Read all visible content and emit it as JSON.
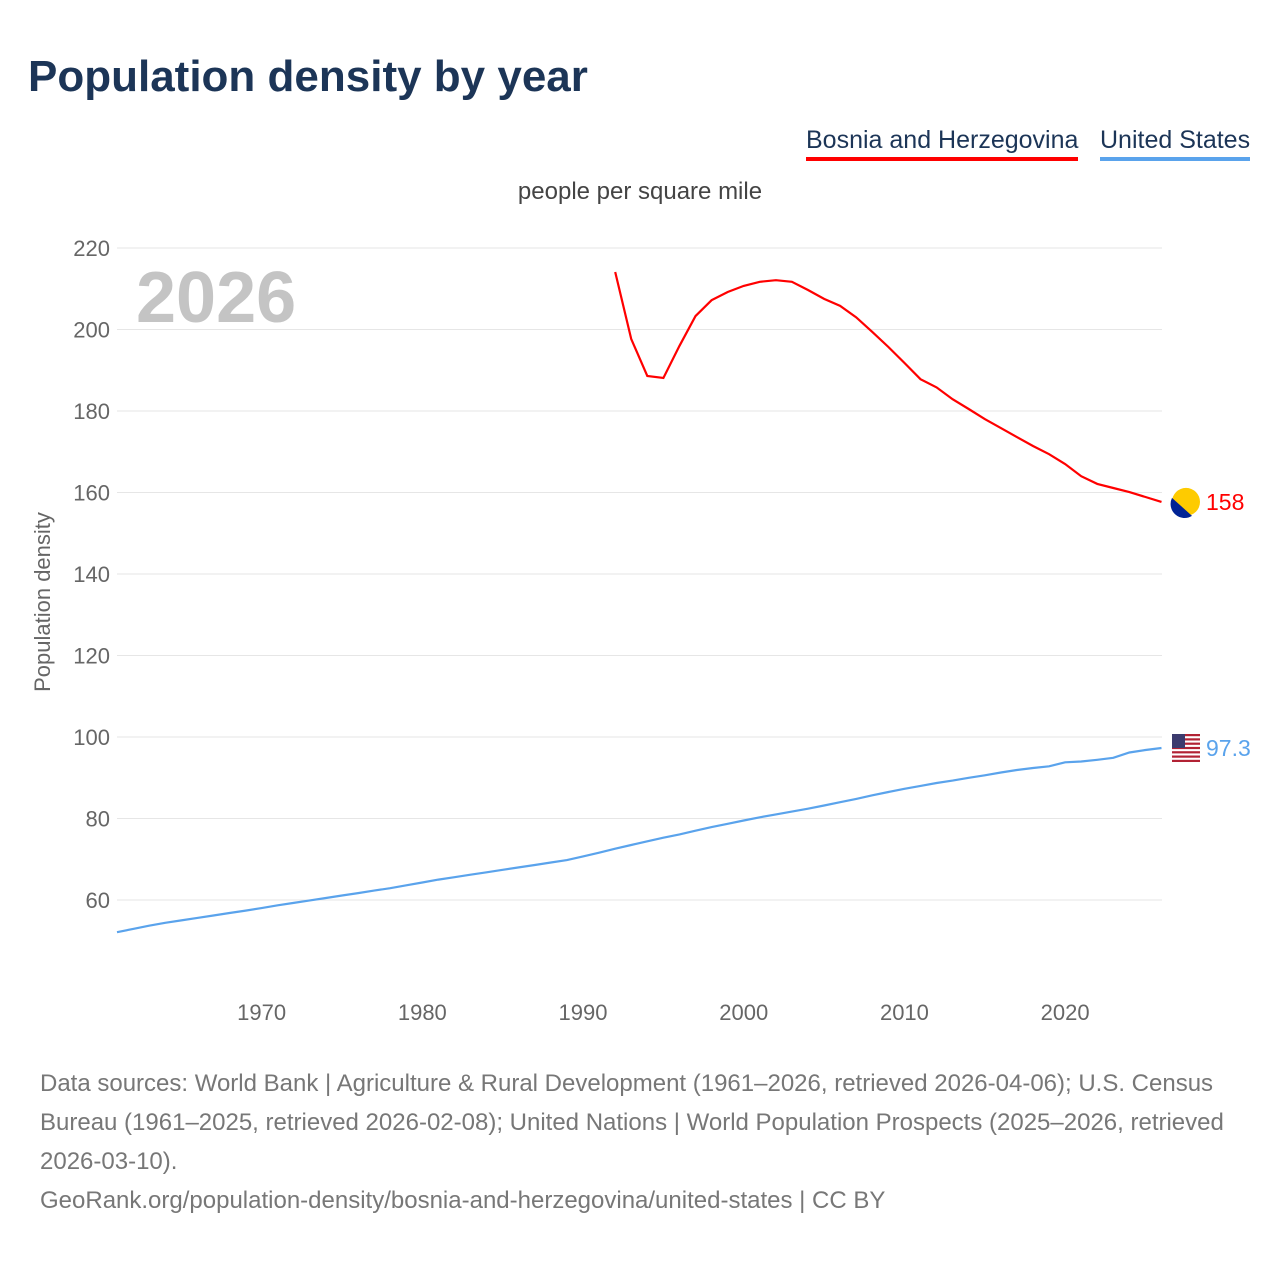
{
  "title": "Population density by year",
  "legend": [
    {
      "label": "Bosnia and Herzegovina",
      "color": "#ff0000"
    },
    {
      "label": "United States",
      "color": "#5aa3ec"
    }
  ],
  "chart_data": {
    "type": "line",
    "title": "Population density by year",
    "subtitle": "people per square mile",
    "ylabel": "Population density",
    "xlabel": "",
    "year_watermark": "2026",
    "ylim": [
      44,
      222
    ],
    "xlim": [
      1961,
      2026
    ],
    "yticks": [
      60,
      80,
      100,
      120,
      140,
      160,
      180,
      200,
      220
    ],
    "xticks": [
      1970,
      1980,
      1990,
      2000,
      2010,
      2020
    ],
    "grid": true,
    "series": [
      {
        "name": "Bosnia and Herzegovina",
        "color": "#ff0000",
        "end_label": "158",
        "start_year": 1992,
        "values": [
          214.1,
          197.7,
          188.6,
          188.1,
          196.0,
          203.3,
          207.2,
          209.2,
          210.7,
          211.7,
          212.1,
          211.7,
          209.7,
          207.5,
          205.8,
          203.0,
          199.4,
          195.7,
          191.8,
          187.8,
          185.8,
          182.9,
          180.5,
          178.0,
          175.8,
          173.6,
          171.4,
          169.4,
          167.0,
          164.0,
          162.1,
          161.1,
          160.1,
          158.9,
          157.7
        ]
      },
      {
        "name": "United States",
        "color": "#5aa3ec",
        "end_label": "97.3",
        "start_year": 1961,
        "values": [
          52.1,
          52.9,
          53.7,
          54.4,
          55.0,
          55.6,
          56.2,
          56.8,
          57.4,
          58.0,
          58.7,
          59.3,
          59.9,
          60.5,
          61.1,
          61.7,
          62.3,
          62.9,
          63.6,
          64.3,
          65.0,
          65.6,
          66.2,
          66.8,
          67.4,
          68.0,
          68.6,
          69.2,
          69.8,
          70.7,
          71.6,
          72.6,
          73.5,
          74.4,
          75.3,
          76.1,
          77.0,
          77.9,
          78.7,
          79.5,
          80.3,
          81.0,
          81.7,
          82.4,
          83.2,
          84.0,
          84.8,
          85.7,
          86.5,
          87.3,
          88.0,
          88.7,
          89.3,
          90.0,
          90.6,
          91.3,
          91.9,
          92.4,
          92.8,
          93.8,
          94.0,
          94.4,
          94.9,
          96.2,
          96.8,
          97.3
        ]
      }
    ]
  },
  "footer": {
    "sources": "Data sources: World Bank | Agriculture & Rural Development (1961–2026, retrieved 2026-04-06); U.S. Census Bureau (1961–2025, retrieved 2026-02-08); United Nations | World Population Prospects (2025–2026, retrieved 2026-03-10).",
    "link": "GeoRank.org/population-density/bosnia-and-herzegovina/united-states | CC BY"
  }
}
